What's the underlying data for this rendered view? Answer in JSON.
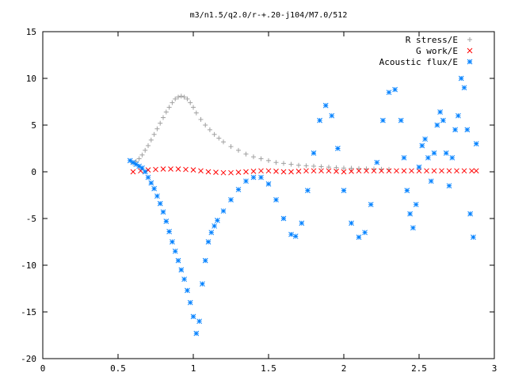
{
  "chart_data": {
    "type": "scatter",
    "title": "m3/n1.5/q2.0/r-+.20-j104/M7.0/512",
    "xlabel": "",
    "ylabel": "",
    "xlim": [
      0,
      3
    ],
    "ylim": [
      -20,
      15
    ],
    "xticks": [
      0,
      0.5,
      1,
      1.5,
      2,
      2.5,
      3
    ],
    "yticks": [
      -20,
      -15,
      -10,
      -5,
      0,
      5,
      10,
      15
    ],
    "xtick_labels": [
      "0",
      "0.5",
      "1",
      "1.5",
      "2",
      "2.5",
      "3"
    ],
    "ytick_labels": [
      "-20",
      "-15",
      "-10",
      "-5",
      "0",
      "5",
      "10",
      "15"
    ],
    "grid": false,
    "legend_position": "top-right",
    "series": [
      {
        "name": "R stress/E",
        "marker": "plus",
        "color": "#a0a0a0",
        "x": [
          0.6,
          0.62,
          0.64,
          0.66,
          0.68,
          0.7,
          0.72,
          0.74,
          0.76,
          0.78,
          0.8,
          0.82,
          0.84,
          0.86,
          0.88,
          0.9,
          0.92,
          0.94,
          0.96,
          0.98,
          1.0,
          1.02,
          1.05,
          1.08,
          1.11,
          1.14,
          1.17,
          1.2,
          1.25,
          1.3,
          1.35,
          1.4,
          1.45,
          1.5,
          1.55,
          1.6,
          1.65,
          1.7,
          1.75,
          1.8,
          1.85,
          1.9,
          1.95,
          2.0,
          2.05,
          2.1,
          2.15,
          2.2,
          2.25,
          2.3
        ],
        "y": [
          0.9,
          1.1,
          1.4,
          1.8,
          2.3,
          2.8,
          3.4,
          4.0,
          4.6,
          5.2,
          5.8,
          6.4,
          6.9,
          7.4,
          7.8,
          8.0,
          8.1,
          8.0,
          7.8,
          7.4,
          6.9,
          6.3,
          5.6,
          5.0,
          4.5,
          4.0,
          3.6,
          3.2,
          2.7,
          2.3,
          1.9,
          1.6,
          1.4,
          1.2,
          1.0,
          0.9,
          0.8,
          0.7,
          0.65,
          0.6,
          0.55,
          0.5,
          0.45,
          0.4,
          0.38,
          0.35,
          0.32,
          0.3,
          0.28,
          0.26
        ]
      },
      {
        "name": "G work/E",
        "marker": "cross",
        "color": "#ff0000",
        "x": [
          0.6,
          0.65,
          0.7,
          0.75,
          0.8,
          0.85,
          0.9,
          0.95,
          1.0,
          1.05,
          1.1,
          1.15,
          1.2,
          1.25,
          1.3,
          1.35,
          1.4,
          1.45,
          1.5,
          1.55,
          1.6,
          1.65,
          1.7,
          1.75,
          1.8,
          1.85,
          1.9,
          1.95,
          2.0,
          2.05,
          2.1,
          2.15,
          2.2,
          2.25,
          2.3,
          2.35,
          2.4,
          2.45,
          2.5,
          2.55,
          2.6,
          2.65,
          2.7,
          2.75,
          2.8,
          2.85,
          2.88
        ],
        "y": [
          0.0,
          0.1,
          0.2,
          0.25,
          0.3,
          0.3,
          0.3,
          0.25,
          0.2,
          0.1,
          0.0,
          -0.05,
          -0.1,
          -0.1,
          -0.05,
          0.0,
          0.05,
          0.1,
          0.1,
          0.05,
          0.0,
          0.0,
          0.05,
          0.1,
          0.1,
          0.1,
          0.1,
          0.05,
          0.0,
          0.05,
          0.1,
          0.1,
          0.1,
          0.1,
          0.1,
          0.1,
          0.1,
          0.1,
          0.1,
          0.1,
          0.1,
          0.1,
          0.1,
          0.1,
          0.1,
          0.1,
          0.1
        ]
      },
      {
        "name": "Acoustic flux/E",
        "marker": "star",
        "color": "#0080ff",
        "x": [
          0.58,
          0.6,
          0.62,
          0.64,
          0.66,
          0.68,
          0.7,
          0.72,
          0.74,
          0.76,
          0.78,
          0.8,
          0.82,
          0.84,
          0.86,
          0.88,
          0.9,
          0.92,
          0.94,
          0.96,
          0.98,
          1.0,
          1.02,
          1.04,
          1.06,
          1.08,
          1.1,
          1.12,
          1.14,
          1.16,
          1.2,
          1.25,
          1.3,
          1.35,
          1.4,
          1.45,
          1.5,
          1.55,
          1.6,
          1.65,
          1.68,
          1.72,
          1.76,
          1.8,
          1.84,
          1.88,
          1.92,
          1.96,
          2.0,
          2.05,
          2.1,
          2.14,
          2.18,
          2.22,
          2.26,
          2.3,
          2.34,
          2.38,
          2.4,
          2.42,
          2.44,
          2.46,
          2.48,
          2.5,
          2.52,
          2.54,
          2.56,
          2.58,
          2.6,
          2.62,
          2.64,
          2.66,
          2.68,
          2.7,
          2.72,
          2.74,
          2.76,
          2.78,
          2.8,
          2.82,
          2.84,
          2.86,
          2.88
        ],
        "y": [
          1.2,
          1.0,
          0.8,
          0.6,
          0.4,
          0.0,
          -0.6,
          -1.2,
          -1.8,
          -2.6,
          -3.4,
          -4.3,
          -5.3,
          -6.4,
          -7.5,
          -8.5,
          -9.5,
          -10.5,
          -11.5,
          -12.7,
          -14.0,
          -15.5,
          -17.3,
          -16.0,
          -12.0,
          -9.5,
          -7.5,
          -6.5,
          -5.8,
          -5.2,
          -4.2,
          -3.0,
          -1.9,
          -1.0,
          -0.6,
          -0.6,
          -1.3,
          -3.0,
          -5.0,
          -6.7,
          -6.9,
          -5.5,
          -2.0,
          2.0,
          5.5,
          7.1,
          6.0,
          2.5,
          -2.0,
          -5.5,
          -7.0,
          -6.5,
          -3.5,
          1.0,
          5.5,
          8.5,
          8.8,
          5.5,
          1.5,
          -2.0,
          -4.5,
          -6.0,
          -3.5,
          0.5,
          2.8,
          3.5,
          1.5,
          -1.0,
          2.0,
          5.0,
          6.4,
          5.5,
          2.0,
          -1.5,
          1.5,
          4.5,
          6.0,
          10.0,
          9.0,
          4.5,
          -4.5,
          -7.0,
          3.0
        ]
      }
    ]
  }
}
